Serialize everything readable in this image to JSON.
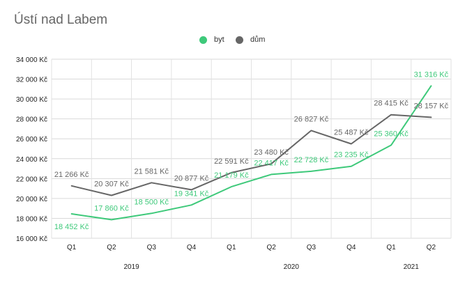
{
  "chart_data": {
    "type": "line",
    "title": "Ústí nad Labem",
    "categories": [
      "Q1",
      "Q2",
      "Q3",
      "Q4",
      "Q1",
      "Q2",
      "Q3",
      "Q4",
      "Q1",
      "Q2"
    ],
    "category_labels": [
      "Q1",
      "Q2",
      "Q3",
      "Q4",
      "Q1",
      "Q2",
      "Q3",
      "Q4",
      "Q1",
      "Q2"
    ],
    "years": [
      {
        "label": "2019",
        "from": 0,
        "to": 3
      },
      {
        "label": "2020",
        "from": 4,
        "to": 7
      },
      {
        "label": "2021",
        "from": 8,
        "to": 9
      }
    ],
    "series": [
      {
        "name": "byt",
        "color": "#3ec97a",
        "values": [
          18452,
          17860,
          18500,
          19341,
          21179,
          22417,
          22728,
          23235,
          25360,
          31316
        ],
        "labels": [
          "18 452 Kč",
          "17 860 Kč",
          "18 500 Kč",
          "19 341 Kč",
          "21 179 Kč",
          "22 417 Kč",
          "22 728 Kč",
          "23 235 Kč",
          "25 360 Kč",
          "31 316 Kč"
        ]
      },
      {
        "name": "dům",
        "color": "#666666",
        "values": [
          21266,
          20307,
          21581,
          20877,
          22591,
          23480,
          26827,
          25487,
          28415,
          28157
        ],
        "labels": [
          "21 266 Kč",
          "20 307 Kč",
          "21 581 Kč",
          "20 877 Kč",
          "22 591 Kč",
          "23 480 Kč",
          "26 827 Kč",
          "25 487 Kč",
          "28 415 Kč",
          "28 157 Kč"
        ]
      }
    ],
    "ylim": [
      16000,
      34000
    ],
    "yticks": [
      16000,
      18000,
      20000,
      22000,
      24000,
      26000,
      28000,
      30000,
      32000,
      34000
    ],
    "ytick_labels": [
      "16 000 Kč",
      "18 000 Kč",
      "20 000 Kč",
      "22 000 Kč",
      "24 000 Kč",
      "26 000 Kč",
      "28 000 Kč",
      "30 000 Kč",
      "32 000 Kč",
      "34 000 Kč"
    ],
    "legend_position": "top",
    "grid": true
  }
}
